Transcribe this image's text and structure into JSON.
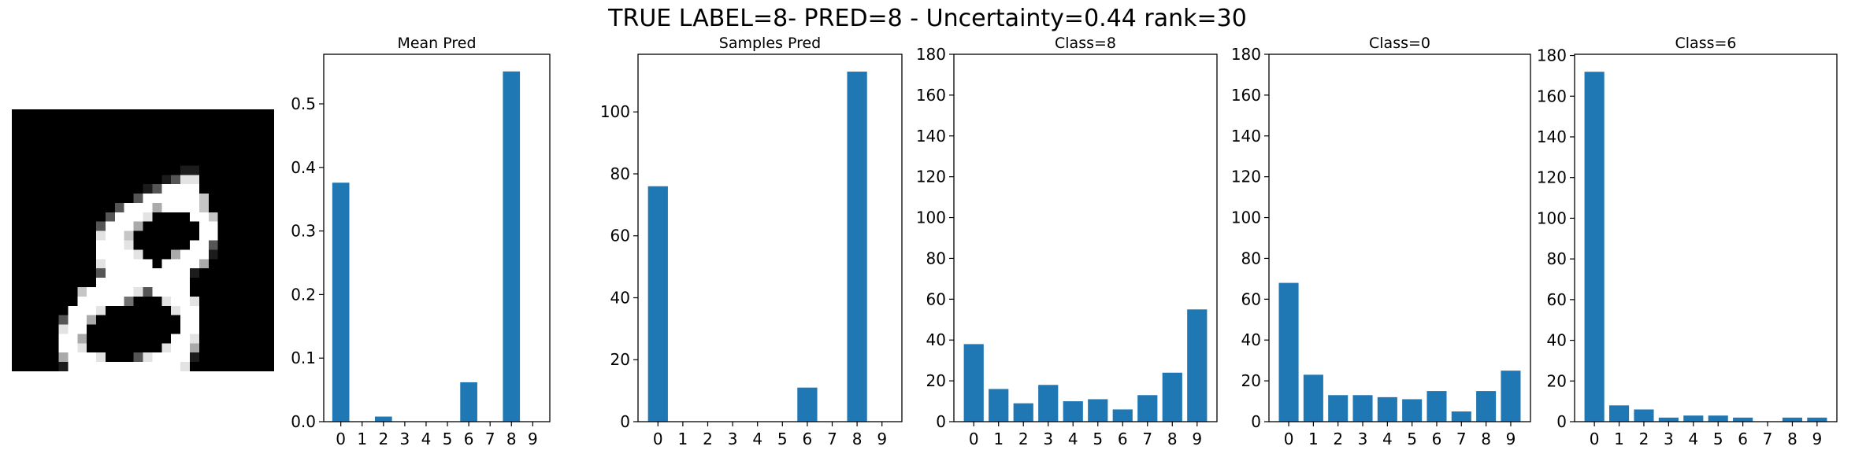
{
  "suptitle": "TRUE LABEL=8- PRED=8 - Uncertainty=0.44 rank=30",
  "bar_color": "#1f77b4",
  "image": {
    "description_icon": "handwritten-digit-8-image",
    "rows": [
      "0000000000000000000000000000",
      "0000000000000000000000000000",
      "0000000000000000000000000000",
      "0000000000000000000000000000",
      "0000000000000000000000000000",
      "0000000000000000000000000000",
      "0000000000000000001100000000",
      "0000000000000000138800000000",
      "0000000000000013999900000000",
      "0000000000000399999970000000",
      "0000000000039996999970000000",
      "0000000000399980000997000000",
      "0000000003999600000099000000",
      "0000000008997000000099000000",
      "0000000009998000000993000000",
      "0000000009999800069991000000",
      "0000000008999990999960000000",
      "0000000003999999999100000000",
      "0000000009999999999000000000",
      "0000000799999839999000000000",
      "0000000999994000899800000000",
      "0000009998000000089900000000",
      "0000039960000000009900000000",
      "0000089900000000009900000000",
      "0000099600000000099800000000",
      "0000099800000000899600000000",
      "0000069998000389999100000000",
      "0000019999999999998000000000"
    ]
  },
  "chart_data": [
    {
      "type": "bar",
      "title": "Mean Pred",
      "categories": [
        "0",
        "1",
        "2",
        "3",
        "4",
        "5",
        "6",
        "7",
        "8",
        "9"
      ],
      "values": [
        0.376,
        0.0,
        0.008,
        0.0,
        0.0,
        0.0,
        0.062,
        0.0,
        0.551,
        0.0
      ],
      "ylim": [
        0,
        0.578
      ],
      "yticks": [
        "0.0",
        "0.1",
        "0.2",
        "0.3",
        "0.4",
        "0.5"
      ],
      "xlabel": "",
      "ylabel": ""
    },
    {
      "type": "bar",
      "title": "Samples Pred",
      "categories": [
        "0",
        "1",
        "2",
        "3",
        "4",
        "5",
        "6",
        "7",
        "8",
        "9"
      ],
      "values": [
        76,
        0,
        0,
        0,
        0,
        0,
        11,
        0,
        113,
        0
      ],
      "ylim": [
        0,
        118.6
      ],
      "yticks": [
        "0",
        "20",
        "40",
        "60",
        "80",
        "100"
      ],
      "xlabel": "",
      "ylabel": ""
    },
    {
      "type": "bar",
      "title": "Class=8",
      "categories": [
        "0",
        "1",
        "2",
        "3",
        "4",
        "5",
        "6",
        "7",
        "8",
        "9"
      ],
      "values": [
        38,
        16,
        9,
        18,
        10,
        11,
        6,
        13,
        24,
        55
      ],
      "ylim": [
        0,
        180
      ],
      "yticks": [
        "0",
        "20",
        "40",
        "60",
        "80",
        "100",
        "120",
        "140",
        "160",
        "180"
      ],
      "xlabel": "",
      "ylabel": ""
    },
    {
      "type": "bar",
      "title": "Class=0",
      "categories": [
        "0",
        "1",
        "2",
        "3",
        "4",
        "5",
        "6",
        "7",
        "8",
        "9"
      ],
      "values": [
        68,
        23,
        13,
        13,
        12,
        11,
        15,
        5,
        15,
        25
      ],
      "ylim": [
        0,
        180
      ],
      "yticks": [
        "0",
        "20",
        "40",
        "60",
        "80",
        "100",
        "120",
        "140",
        "160",
        "180"
      ],
      "xlabel": "",
      "ylabel": ""
    },
    {
      "type": "bar",
      "title": "Class=6",
      "categories": [
        "0",
        "1",
        "2",
        "3",
        "4",
        "5",
        "6",
        "7",
        "8",
        "9"
      ],
      "values": [
        172,
        8,
        6,
        2,
        3,
        3,
        2,
        0,
        2,
        2
      ],
      "ylim": [
        0,
        180.6
      ],
      "yticks": [
        "0",
        "20",
        "40",
        "60",
        "80",
        "100",
        "120",
        "140",
        "160",
        "180"
      ],
      "xlabel": "",
      "ylabel": ""
    }
  ]
}
